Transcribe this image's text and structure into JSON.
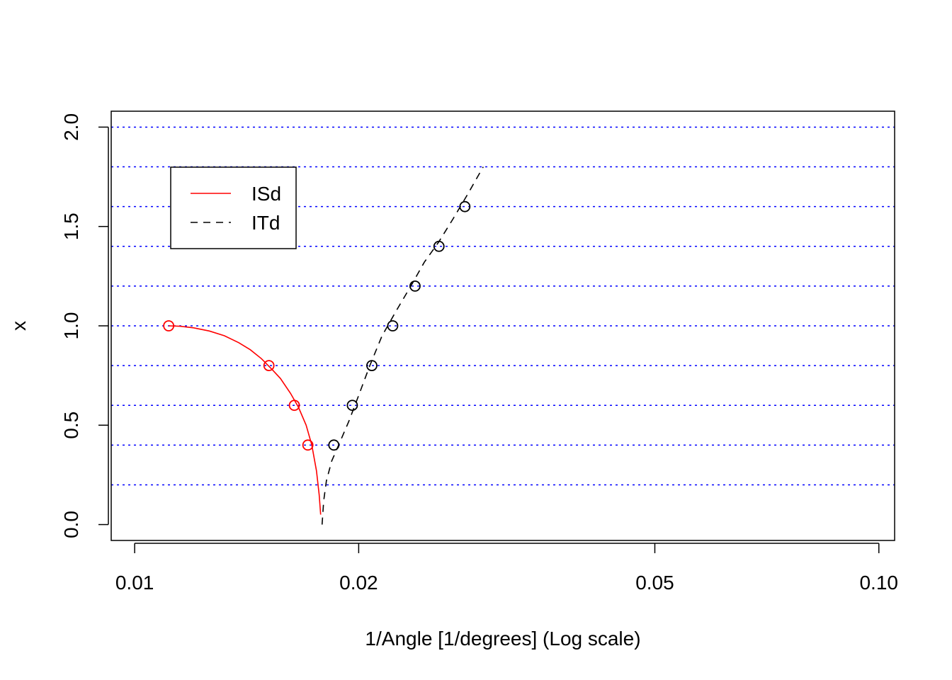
{
  "chart_data": {
    "type": "line",
    "title": "",
    "xlabel": "1/Angle [1/degrees]   (Log scale)",
    "ylabel": "x",
    "x_scale": "log",
    "xlim": [
      0.0093,
      0.105
    ],
    "ylim": [
      -0.08,
      2.08
    ],
    "x_ticks": [
      {
        "value": 0.01,
        "label": "0.01"
      },
      {
        "value": 0.02,
        "label": "0.02"
      },
      {
        "value": 0.05,
        "label": "0.05"
      },
      {
        "value": 0.1,
        "label": "0.10"
      }
    ],
    "y_ticks": [
      {
        "value": 0.0,
        "label": "0.0"
      },
      {
        "value": 0.5,
        "label": "0.5"
      },
      {
        "value": 1.0,
        "label": "1.0"
      },
      {
        "value": 1.5,
        "label": "1.5"
      },
      {
        "value": 2.0,
        "label": "2.0"
      }
    ],
    "hlines": {
      "values": [
        0.2,
        0.4,
        0.6,
        0.8,
        1.0,
        1.2,
        1.4,
        1.6,
        1.8,
        2.0
      ],
      "color": "#0000ff",
      "style": "dotted"
    },
    "legend": {
      "position": "top-left",
      "entries": [
        "ISd",
        "ITd"
      ]
    },
    "series": [
      {
        "name": "ISd",
        "color": "#ff0000",
        "line_style": "solid",
        "line": {
          "x": [
            0.01111,
            0.0115,
            0.012,
            0.0126,
            0.0132,
            0.0138,
            0.0143,
            0.0148,
            0.0153,
            0.0157,
            0.0162,
            0.0166,
            0.017,
            0.0173,
            0.01755,
            0.0177,
            0.01778
          ],
          "y": [
            1.0,
            0.998,
            0.99,
            0.974,
            0.95,
            0.915,
            0.88,
            0.835,
            0.78,
            0.735,
            0.66,
            0.59,
            0.5,
            0.4,
            0.27,
            0.15,
            0.05
          ]
        },
        "points": {
          "x": [
            0.01111,
            0.01515,
            0.01639,
            0.01709
          ],
          "y": [
            1.0,
            0.8,
            0.6,
            0.4
          ]
        }
      },
      {
        "name": "ITd",
        "color": "#000000",
        "line_style": "dashed",
        "line": {
          "x": [
            0.01786,
            0.01795,
            0.0181,
            0.0184,
            0.0188,
            0.0194,
            0.02,
            0.0207,
            0.0215,
            0.0225,
            0.0235,
            0.0245,
            0.0256,
            0.0268,
            0.028,
            0.0294
          ],
          "y": [
            0.0,
            0.12,
            0.22,
            0.32,
            0.4,
            0.52,
            0.65,
            0.8,
            0.95,
            1.08,
            1.2,
            1.32,
            1.42,
            1.54,
            1.66,
            1.8
          ]
        },
        "points": {
          "x": [
            0.01852,
            0.01961,
            0.02083,
            0.02222,
            0.02381,
            0.02564,
            0.02778
          ],
          "y": [
            0.4,
            0.6,
            0.8,
            1.0,
            1.2,
            1.4,
            1.6
          ]
        }
      }
    ]
  }
}
